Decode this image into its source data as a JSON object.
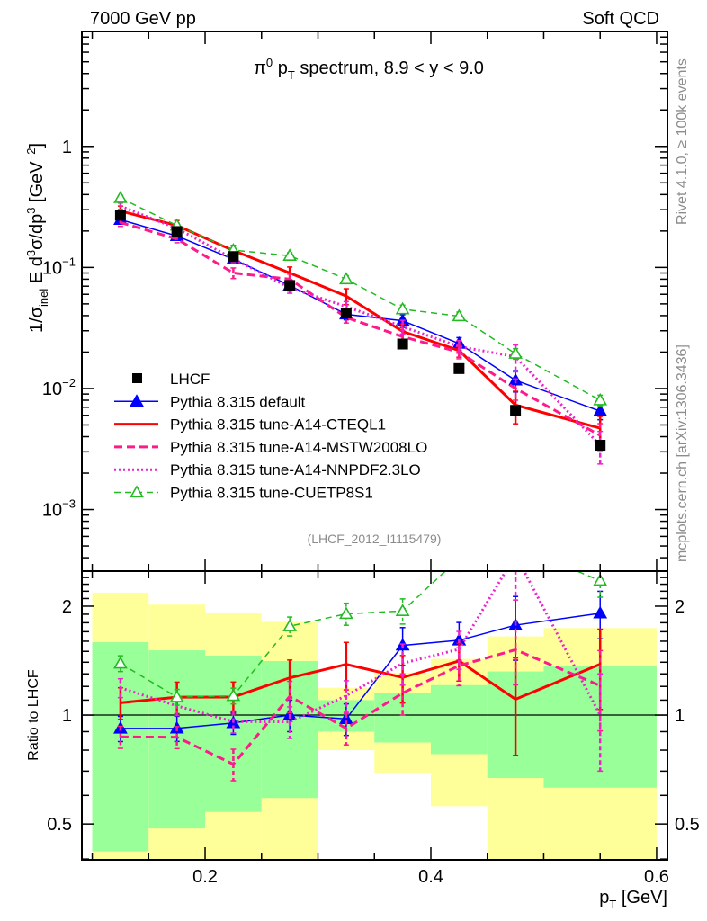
{
  "header": {
    "left": "7000 GeV pp",
    "right": "Soft QCD"
  },
  "side_labels": {
    "rivet": "Rivet 4.1.0, ≥ 100k events",
    "mcplots": "mcplots.cern.ch [arXiv:1306.3436]"
  },
  "chart_data": [
    {
      "type": "line",
      "panel": "main",
      "title": "π⁰ p_T spectrum, 8.9 < y < 9.0",
      "title_parts": {
        "pi": "π",
        "sup": "0",
        "p": " p",
        "sub": "T",
        "rest": " spectrum, 8.9 < y < 9.0"
      },
      "ylabel": "1/σ_inel E d³σ/dp³ [GeV⁻²]",
      "ylabel_parts": {
        "a": "1/σ",
        "a_sub": "inel",
        "b": " E d",
        "b_sup": "3",
        "c": "σ/dp",
        "c_sup": "3",
        "d": " [GeV",
        "d_sup": "−2",
        "e": "]"
      },
      "yscale": "log",
      "ylim": [
        0.00031,
        8.9
      ],
      "xlim": [
        0.0908,
        0.6096
      ],
      "ytick_labels": [
        {
          "value": 1,
          "base": "1",
          "exp": ""
        },
        {
          "value": 0.1,
          "base": "10",
          "exp": "−1"
        },
        {
          "value": 0.01,
          "base": "10",
          "exp": "−2"
        },
        {
          "value": 0.001,
          "base": "10",
          "exp": "−3"
        }
      ],
      "x": [
        0.125,
        0.175,
        0.225,
        0.275,
        0.325,
        0.375,
        0.425,
        0.475,
        0.55
      ],
      "reference": {
        "name": "LHCF",
        "color": "#000000",
        "values": [
          0.27,
          0.198,
          0.123,
          0.071,
          0.042,
          0.0233,
          0.0146,
          0.0066,
          0.0034
        ]
      },
      "series": [
        {
          "name": "Pythia 8.315 default",
          "color": "#0000ff",
          "style": "solid-thin",
          "marker": "filled-triangle",
          "values": [
            0.248,
            0.182,
            0.117,
            0.071,
            0.041,
            0.0363,
            0.0235,
            0.0117,
            0.0065
          ],
          "rel_err": [
            0.08,
            0.08,
            0.07,
            0.1,
            0.1,
            0.12,
            0.12,
            0.2,
            0.15
          ]
        },
        {
          "name": "Pythia 8.315 tune-A14-CTEQL1",
          "color": "#ff0000",
          "style": "solid-thick",
          "marker": "none",
          "values": [
            0.292,
            0.222,
            0.138,
            0.09,
            0.058,
            0.0296,
            0.0206,
            0.0073,
            0.0047
          ],
          "rel_err": [
            0.1,
            0.1,
            0.1,
            0.12,
            0.15,
            0.15,
            0.12,
            0.3,
            0.25
          ]
        },
        {
          "name": "Pythia 8.315 tune-A14-MSTW2008LO",
          "color": "#ff1a8c",
          "style": "dashed-thick",
          "marker": "none",
          "values": [
            0.235,
            0.172,
            0.09,
            0.08,
            0.0386,
            0.0268,
            0.02,
            0.01,
            0.0041
          ],
          "rel_err": [
            0.07,
            0.07,
            0.1,
            0.1,
            0.1,
            0.13,
            0.12,
            0.2,
            0.25
          ]
        },
        {
          "name": "Pythia 8.315 tune-A14-NNPDF2.3LO",
          "color": "#ee22cc",
          "style": "dotted-thick",
          "marker": "none",
          "values": [
            0.321,
            0.21,
            0.118,
            0.068,
            0.0475,
            0.0324,
            0.0222,
            0.0183,
            0.0034
          ],
          "rel_err": [
            0.06,
            0.06,
            0.07,
            0.1,
            0.1,
            0.13,
            0.12,
            0.25,
            0.3
          ]
        },
        {
          "name": "Pythia 8.315 tune-CUETP8S1",
          "color": "#22bb22",
          "style": "dashed-thin",
          "marker": "open-triangle",
          "values": [
            0.375,
            0.222,
            0.139,
            0.125,
            0.08,
            0.0452,
            0.0396,
            0.0194,
            0.008
          ],
          "rel_err": [
            0.05,
            0.05,
            0.05,
            0.06,
            0.07,
            0.08,
            0.08,
            0.1,
            0.1
          ]
        }
      ],
      "legend": {
        "placement": "lower-left"
      },
      "annotation": "(LHCF_2012_I1115479)"
    },
    {
      "type": "line",
      "panel": "ratio",
      "ylabel": "Ratio to LHCF",
      "xlabel": "p_T [GeV]",
      "xlabel_parts": {
        "p": "p",
        "sub": "T",
        "rest": " [GeV]"
      },
      "yscale": "log",
      "ylim": [
        0.398,
        2.5
      ],
      "xlim": [
        0.0908,
        0.6096
      ],
      "ytick_labels": [
        "2",
        "1",
        "0.5"
      ],
      "ytick_values": [
        2,
        1,
        0.5
      ],
      "xtick_labels": [
        "0.2",
        "0.4",
        "0.6"
      ],
      "xtick_values": [
        0.2,
        0.4,
        0.6
      ],
      "bin_edges": [
        0.1,
        0.15,
        0.2,
        0.25,
        0.3,
        0.35,
        0.4,
        0.45,
        0.5,
        0.6
      ],
      "band_inner": {
        "color": "#99ff99",
        "upper": [
          1.59,
          1.51,
          1.46,
          1.41,
          1.1,
          1.15,
          1.21,
          1.32,
          1.37
        ],
        "lower": [
          0.42,
          0.486,
          0.54,
          0.59,
          0.9,
          0.84,
          0.78,
          0.67,
          0.63
        ]
      },
      "band_outer": {
        "color": "#ffff99",
        "upper": [
          2.18,
          2.02,
          1.91,
          1.81,
          1.19,
          1.31,
          1.43,
          1.65,
          1.74
        ],
        "lower": [
          0.4,
          0.3,
          0.3,
          0.3,
          0.8,
          0.69,
          0.56,
          0.3,
          0.3
        ]
      }
    }
  ]
}
